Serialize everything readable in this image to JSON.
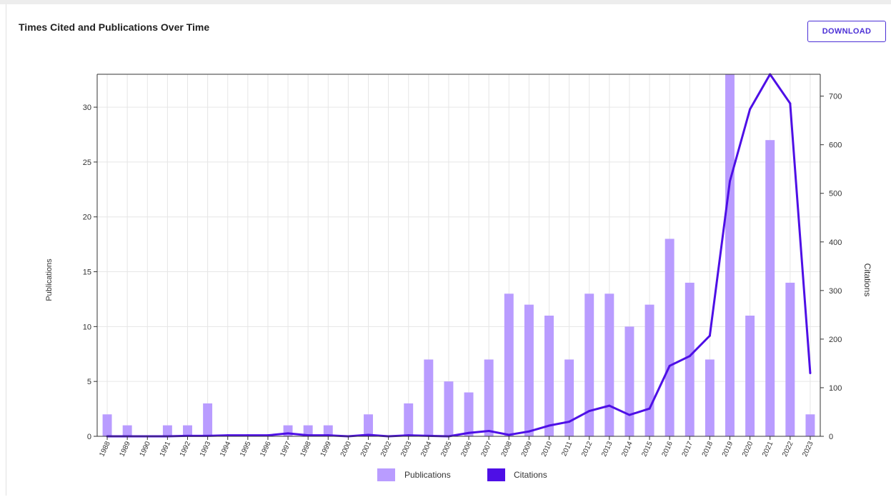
{
  "header": {
    "title": "Times Cited and Publications Over Time",
    "download_label": "DOWNLOAD"
  },
  "colors": {
    "publications": "#b99cff",
    "citations": "#4e0fe6",
    "grid": "#e6e6e6",
    "axis": "#333333"
  },
  "chart_data": {
    "type": "bar",
    "title": "Times Cited and Publications Over Time",
    "categories": [
      "1988",
      "1989",
      "1990",
      "1991",
      "1992",
      "1993",
      "1994",
      "1995",
      "1996",
      "1997",
      "1998",
      "1999",
      "2000",
      "2001",
      "2002",
      "2003",
      "2004",
      "2005",
      "2006",
      "2007",
      "2008",
      "2009",
      "2010",
      "2011",
      "2012",
      "2013",
      "2014",
      "2015",
      "2016",
      "2017",
      "2018",
      "2019",
      "2020",
      "2021",
      "2022",
      "2023"
    ],
    "series": [
      {
        "name": "Publications",
        "type": "bar",
        "axis": "left",
        "values": [
          2,
          1,
          0,
          1,
          1,
          3,
          0,
          0,
          0,
          1,
          1,
          1,
          0,
          2,
          0,
          3,
          7,
          5,
          4,
          7,
          13,
          12,
          11,
          7,
          13,
          13,
          10,
          12,
          18,
          14,
          7,
          33,
          11,
          27,
          14,
          2
        ]
      },
      {
        "name": "Citations",
        "type": "line",
        "axis": "right",
        "values": [
          0,
          0,
          0,
          0,
          1,
          1,
          2,
          2,
          2,
          6,
          2,
          2,
          0,
          3,
          0,
          2,
          1,
          0,
          7,
          11,
          3,
          10,
          22,
          30,
          52,
          63,
          44,
          57,
          145,
          165,
          207,
          525,
          673,
          745,
          685,
          130
        ]
      }
    ],
    "ylabel_left": "Publications",
    "ylabel_right": "Citations",
    "ylim_left": [
      0,
      33
    ],
    "ylim_right": [
      0,
      745
    ],
    "yticks_left": [
      0,
      5,
      10,
      15,
      20,
      25,
      30
    ],
    "yticks_right": [
      0,
      100,
      200,
      300,
      400,
      500,
      600,
      700
    ],
    "grid": true,
    "legend_position": "bottom-center"
  }
}
